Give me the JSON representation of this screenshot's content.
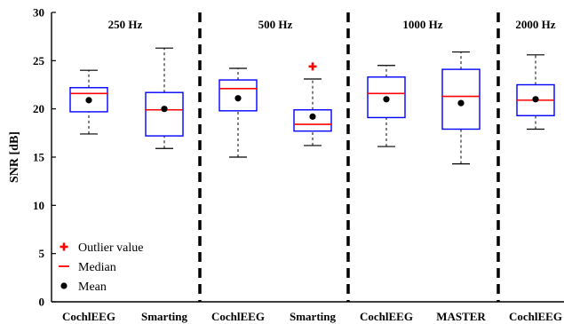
{
  "chart_data": {
    "type": "box",
    "ylabel": "SNR [dB]",
    "ylim": [
      0,
      30
    ],
    "yticks": [
      0,
      5,
      10,
      15,
      20,
      25,
      30
    ],
    "groups": [
      "250 Hz",
      "500 Hz",
      "1000 Hz",
      "2000 Hz"
    ],
    "boxes": [
      {
        "group": 0,
        "label": "CochlEEG",
        "min": 17.4,
        "q1": 19.7,
        "median": 21.6,
        "q3": 22.2,
        "max": 24.0,
        "mean": 20.9,
        "outliers": []
      },
      {
        "group": 0,
        "label": "Smarting",
        "min": 15.9,
        "q1": 17.2,
        "median": 19.9,
        "q3": 21.7,
        "max": 26.3,
        "mean": 20.0,
        "outliers": []
      },
      {
        "group": 1,
        "label": "CochlEEG",
        "min": 15.0,
        "q1": 19.8,
        "median": 22.1,
        "q3": 23.0,
        "max": 24.2,
        "mean": 21.1,
        "outliers": []
      },
      {
        "group": 1,
        "label": "Smarting",
        "min": 16.2,
        "q1": 17.7,
        "median": 18.4,
        "q3": 19.9,
        "max": 23.1,
        "mean": 19.2,
        "outliers": [
          24.4
        ]
      },
      {
        "group": 2,
        "label": "CochlEEG",
        "min": 16.1,
        "q1": 19.1,
        "median": 21.6,
        "q3": 23.3,
        "max": 24.5,
        "mean": 21.0,
        "outliers": []
      },
      {
        "group": 2,
        "label": "MASTER",
        "min": 14.3,
        "q1": 17.9,
        "median": 21.3,
        "q3": 24.1,
        "max": 25.9,
        "mean": 20.6,
        "outliers": []
      },
      {
        "group": 3,
        "label": "CochlEEG",
        "min": 17.9,
        "q1": 19.3,
        "median": 20.9,
        "q3": 22.5,
        "max": 25.6,
        "mean": 21.0,
        "outliers": []
      }
    ],
    "legend": {
      "placement": "bottom-left",
      "entries": [
        {
          "marker": "plus",
          "label": "Outlier value"
        },
        {
          "marker": "line",
          "label": "Median"
        },
        {
          "marker": "dot",
          "label": "Mean"
        }
      ]
    },
    "grid": false,
    "colors": {
      "box": "#0000ff",
      "median": "#ff0000",
      "outlier": "#ff0000",
      "mean": "#000000",
      "whisker": "#000000",
      "separator": "#000000"
    }
  }
}
